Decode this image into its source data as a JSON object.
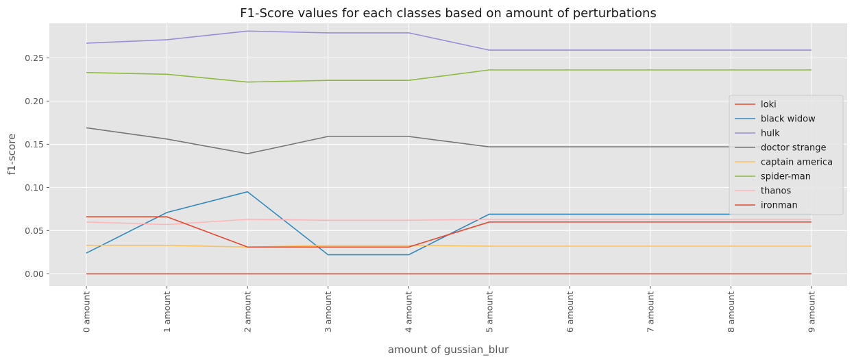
{
  "chart_data": {
    "type": "line",
    "title": "F1-Score values for each classes based on amount of perturbations",
    "xlabel": "amount of gussian_blur",
    "ylabel": "f1-score",
    "categories": [
      "0 amount",
      "1 amount",
      "2 amount",
      "3 amount",
      "4 amount",
      "5 amount",
      "6 amount",
      "7 amount",
      "8 amount",
      "9 amount"
    ],
    "yticks": [
      "0.00",
      "0.05",
      "0.10",
      "0.15",
      "0.20",
      "0.25"
    ],
    "ylim": [
      -0.014,
      0.29
    ],
    "grid": true,
    "legend_position": "center-right",
    "series": [
      {
        "name": "loki",
        "color": "#E24A33",
        "values": [
          0.0,
          0.0,
          0.0,
          0.0,
          0.0,
          0.0,
          0.0,
          0.0,
          0.0,
          0.0
        ]
      },
      {
        "name": "black widow",
        "color": "#348ABD",
        "values": [
          0.024,
          0.071,
          0.095,
          0.022,
          0.022,
          0.069,
          0.069,
          0.069,
          0.069,
          0.069
        ]
      },
      {
        "name": "hulk",
        "color": "#988ED5",
        "values": [
          0.267,
          0.271,
          0.281,
          0.279,
          0.279,
          0.259,
          0.259,
          0.259,
          0.259,
          0.259
        ]
      },
      {
        "name": "doctor strange",
        "color": "#777777",
        "values": [
          0.169,
          0.156,
          0.139,
          0.159,
          0.159,
          0.147,
          0.147,
          0.147,
          0.147,
          0.147
        ]
      },
      {
        "name": "captain america",
        "color": "#FBC15E",
        "values": [
          0.033,
          0.033,
          0.031,
          0.033,
          0.033,
          0.032,
          0.032,
          0.032,
          0.032,
          0.032
        ]
      },
      {
        "name": "spider-man",
        "color": "#8EBA42",
        "values": [
          0.233,
          0.231,
          0.222,
          0.224,
          0.224,
          0.236,
          0.236,
          0.236,
          0.236,
          0.236
        ]
      },
      {
        "name": "thanos",
        "color": "#FFB5B8",
        "values": [
          0.06,
          0.057,
          0.063,
          0.062,
          0.062,
          0.063,
          0.063,
          0.063,
          0.063,
          0.063
        ]
      },
      {
        "name": "ironman",
        "color": "#E24A33",
        "values": [
          0.066,
          0.066,
          0.031,
          0.031,
          0.031,
          0.06,
          0.06,
          0.06,
          0.06,
          0.06
        ]
      }
    ]
  }
}
